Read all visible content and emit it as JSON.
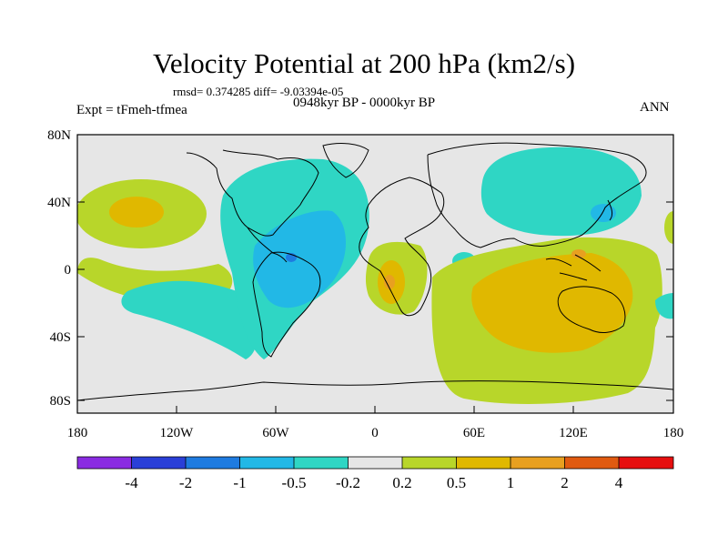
{
  "figure": {
    "title": "Velocity Potential at 200 hPa (km2/s)",
    "stats": "rmsd= 0.374285 diff= -9.03394e-05",
    "left_label": "Expt = tFmeh-tfmea",
    "center_label": "0948kyr BP - 0000kyr BP",
    "right_label": "ANN"
  },
  "axes": {
    "y_ticks": [
      "80N",
      "40N",
      "0",
      "40S",
      "80S"
    ],
    "x_ticks": [
      "180",
      "120W",
      "60W",
      "0",
      "60E",
      "120E",
      "180"
    ]
  },
  "colorbar": {
    "colors": [
      "#8a2be2",
      "#2a3fd8",
      "#1e7be0",
      "#22b8e6",
      "#2fd6c4",
      "#e6e6e6",
      "#b8d62a",
      "#e0b800",
      "#e8a020",
      "#e05a10",
      "#e60f0f"
    ],
    "labels": [
      "-4",
      "-2",
      "-1",
      "-0.5",
      "-0.2",
      "0.2",
      "0.5",
      "1",
      "2",
      "4"
    ]
  },
  "map_colors": {
    "background": "#e6e6e6",
    "neg1": "#2fd6c4",
    "neg2": "#22b8e6",
    "neg3": "#1e7be0",
    "pos1": "#b8d62a",
    "pos2": "#e0b800",
    "pos3": "#e8a020",
    "pos4": "#e05a10",
    "coast": "#000000"
  }
}
